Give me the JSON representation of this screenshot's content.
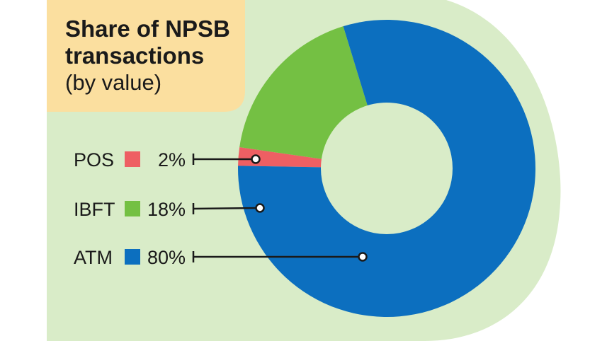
{
  "colors": {
    "panel_bg": "#d9ecc8",
    "title_bg": "#fbdf9f",
    "hole": "#d9ecc8",
    "ATM": "#0c6fbf",
    "IBFT": "#74c043",
    "POS": "#ee5f63",
    "text": "#1a1a1a"
  },
  "chart_data": {
    "type": "pie",
    "variant": "donut",
    "title_lines": [
      "Share of NPSB",
      "transactions"
    ],
    "subtitle": "(by value)",
    "legend_position": "left",
    "slices": [
      {
        "label": "POS",
        "value": 2,
        "value_label": "2%"
      },
      {
        "label": "IBFT",
        "value": 18,
        "value_label": "18%"
      },
      {
        "label": "ATM",
        "value": 80,
        "value_label": "80%"
      }
    ]
  }
}
